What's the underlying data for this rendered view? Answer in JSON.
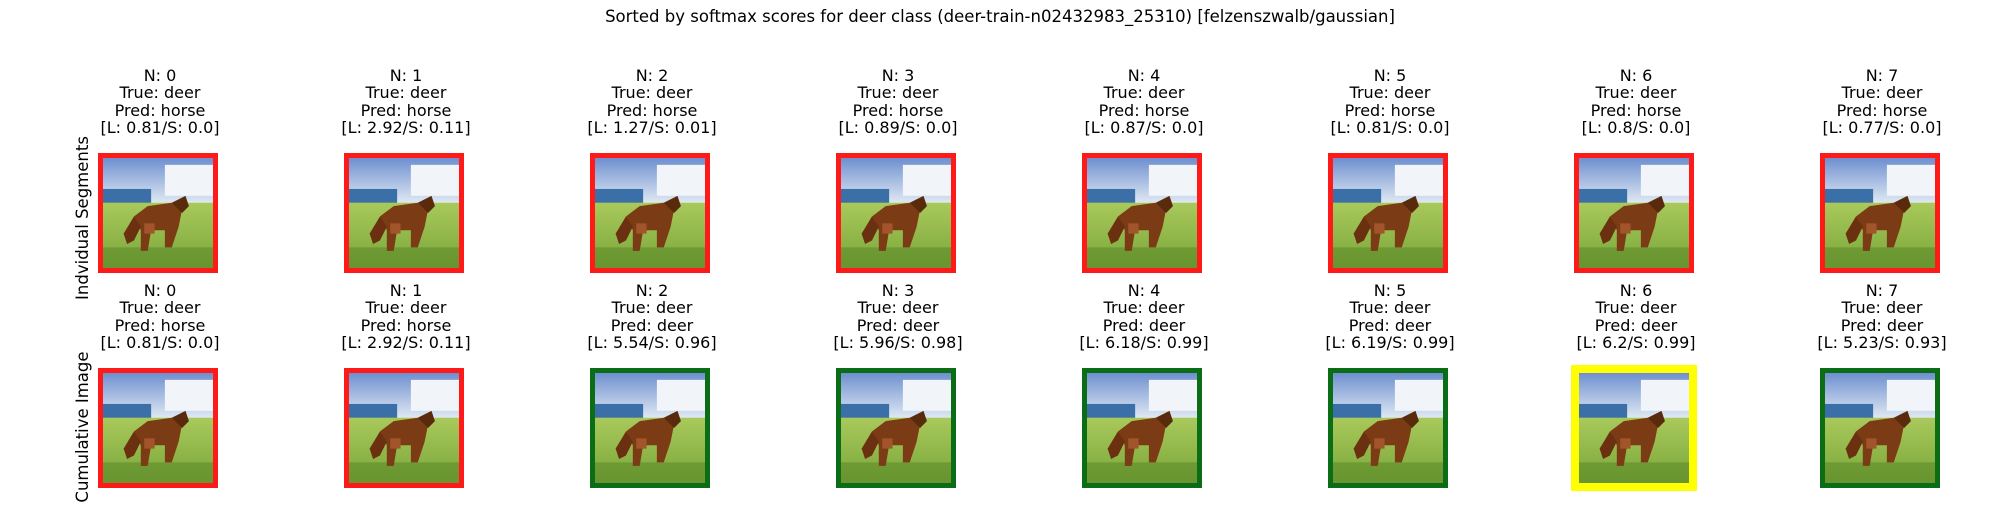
{
  "figure": {
    "title": "Sorted by softmax scores for deer class (deer-train-n02432983_25310) [felzenszwalb/gaussian]"
  },
  "colors": {
    "red": "#ff1a1a",
    "green": "#0b6e16",
    "yellow": "#ffff00"
  },
  "rows": [
    {
      "label": "Indvidual Segments",
      "panels": [
        {
          "n": "N: 0",
          "true": "True: deer",
          "pred": "Pred: horse",
          "scores": "[L: 0.81/S: 0.0]",
          "border": "red"
        },
        {
          "n": "N: 1",
          "true": "True: deer",
          "pred": "Pred: horse",
          "scores": "[L: 2.92/S: 0.11]",
          "border": "red"
        },
        {
          "n": "N: 2",
          "true": "True: deer",
          "pred": "Pred: horse",
          "scores": "[L: 1.27/S: 0.01]",
          "border": "red"
        },
        {
          "n": "N: 3",
          "true": "True: deer",
          "pred": "Pred: horse",
          "scores": "[L: 0.89/S: 0.0]",
          "border": "red"
        },
        {
          "n": "N: 4",
          "true": "True: deer",
          "pred": "Pred: horse",
          "scores": "[L: 0.87/S: 0.0]",
          "border": "red"
        },
        {
          "n": "N: 5",
          "true": "True: deer",
          "pred": "Pred: horse",
          "scores": "[L: 0.81/S: 0.0]",
          "border": "red"
        },
        {
          "n": "N: 6",
          "true": "True: deer",
          "pred": "Pred: horse",
          "scores": "[L: 0.8/S: 0.0]",
          "border": "red"
        },
        {
          "n": "N: 7",
          "true": "True: deer",
          "pred": "Pred: horse",
          "scores": "[L: 0.77/S: 0.0]",
          "border": "red"
        }
      ]
    },
    {
      "label": "Cumulative Image",
      "panels": [
        {
          "n": "N: 0",
          "true": "True: deer",
          "pred": "Pred: horse",
          "scores": "[L: 0.81/S: 0.0]",
          "border": "red"
        },
        {
          "n": "N: 1",
          "true": "True: deer",
          "pred": "Pred: horse",
          "scores": "[L: 2.92/S: 0.11]",
          "border": "red"
        },
        {
          "n": "N: 2",
          "true": "True: deer",
          "pred": "Pred: deer",
          "scores": "[L: 5.54/S: 0.96]",
          "border": "green"
        },
        {
          "n": "N: 3",
          "true": "True: deer",
          "pred": "Pred: deer",
          "scores": "[L: 5.96/S: 0.98]",
          "border": "green"
        },
        {
          "n": "N: 4",
          "true": "True: deer",
          "pred": "Pred: deer",
          "scores": "[L: 6.18/S: 0.99]",
          "border": "green"
        },
        {
          "n": "N: 5",
          "true": "True: deer",
          "pred": "Pred: deer",
          "scores": "[L: 6.19/S: 0.99]",
          "border": "green"
        },
        {
          "n": "N: 6",
          "true": "True: deer",
          "pred": "Pred: deer",
          "scores": "[L: 6.2/S: 0.99]",
          "border": "yellow"
        },
        {
          "n": "N: 7",
          "true": "True: deer",
          "pred": "Pred: deer",
          "scores": "[L: 5.23/S: 0.93]",
          "border": "green"
        }
      ]
    }
  ]
}
